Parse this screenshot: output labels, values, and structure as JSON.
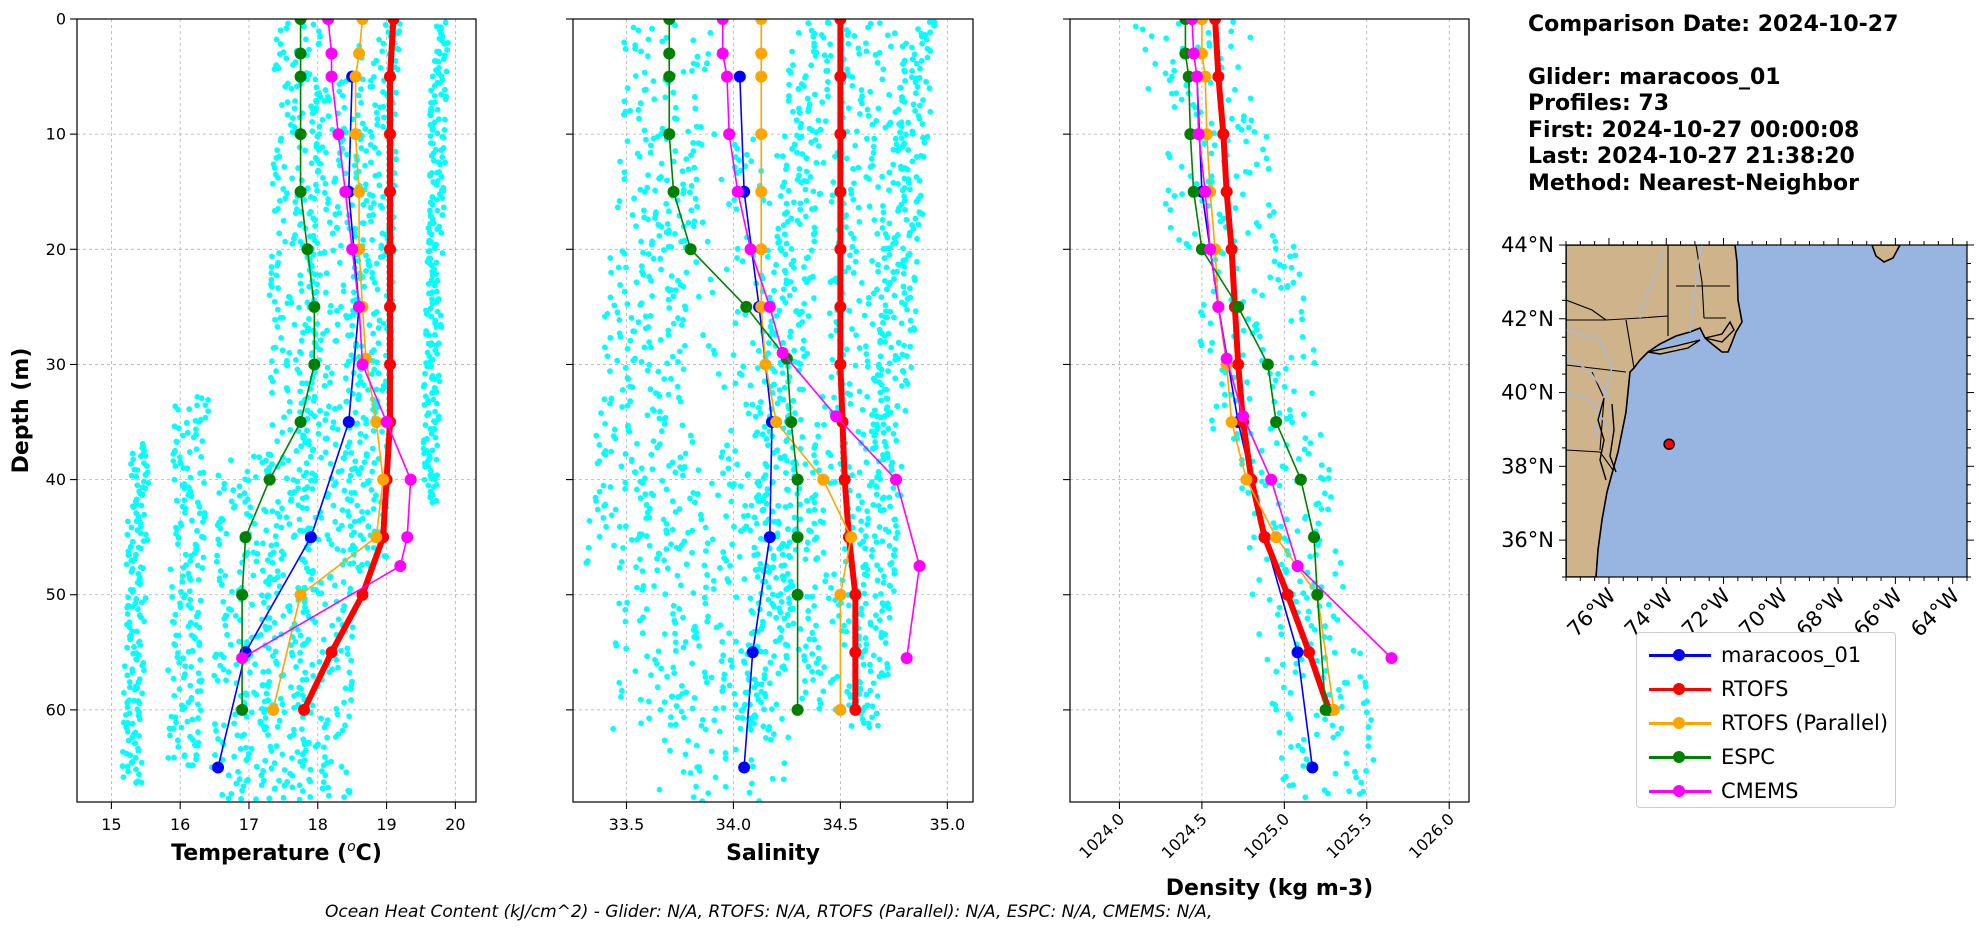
{
  "colors": {
    "glider": "#0000ff",
    "rtofs": "#ff0000",
    "rtofs_parallel": "#ffa500",
    "espc": "#008000",
    "cmems": "#ff00ff",
    "glider_raw": "#00ffff",
    "land": "#cfb38a",
    "ocean": "#98b5e2",
    "rivers": "#a8bcd8",
    "grid": "#b0b0b0"
  },
  "info": {
    "comparison_date": "Comparison Date: 2024-10-27",
    "glider": "Glider: maracoos_01",
    "profiles": "Profiles: 73",
    "first": "First: 2024-10-27 00:00:08",
    "last": "Last: 2024-10-27 21:38:20",
    "method": "Method: Nearest-Neighbor"
  },
  "footer": "Ocean Heat Content (kJ/cm^2) - Glider: N/A,  RTOFS: N/A,  RTOFS (Parallel): N/A,  ESPC: N/A,  CMEMS: N/A,",
  "legend": [
    {
      "label": "maracoos_01",
      "color_key": "glider"
    },
    {
      "label": "RTOFS",
      "color_key": "rtofs"
    },
    {
      "label": "RTOFS (Parallel)",
      "color_key": "rtofs_parallel"
    },
    {
      "label": "ESPC",
      "color_key": "espc"
    },
    {
      "label": "CMEMS",
      "color_key": "cmems"
    }
  ],
  "chart_data": [
    {
      "type": "line",
      "panel": "temperature",
      "ylabel": "Depth (m)",
      "ylim": [
        68,
        0
      ],
      "yticks": [
        0,
        10,
        20,
        30,
        40,
        50,
        60
      ],
      "xlabel_parts": [
        "Temperature (",
        "o",
        "C)"
      ],
      "xlim": [
        14.5,
        20.3
      ],
      "xticks": [
        15,
        16,
        17,
        18,
        19,
        20
      ],
      "grid": true,
      "raw_columns": [
        {
          "base": 15.35,
          "top": 37,
          "bottom": 66.5,
          "spread": 0.15
        },
        {
          "base": 16.1,
          "top": 33,
          "bottom": 65,
          "spread": 0.25
        },
        {
          "base": 16.9,
          "top": 38,
          "bottom": 68,
          "spread": 0.4
        },
        {
          "base": 17.6,
          "top": 0.5,
          "bottom": 68,
          "spread": 0.35
        },
        {
          "base": 18.2,
          "top": 5,
          "bottom": 68,
          "spread": 0.4
        },
        {
          "base": 18.8,
          "top": 0.5,
          "bottom": 48,
          "spread": 0.3
        },
        {
          "base": 19.7,
          "top": 0.5,
          "bottom": 42,
          "spread": 0.12
        }
      ],
      "series": [
        {
          "name": "maracoos_01",
          "color_key": "glider",
          "width": 1.6,
          "marker": 6,
          "depth": [
            5,
            15,
            25,
            35,
            45,
            55,
            65
          ],
          "values": [
            18.5,
            18.45,
            18.6,
            18.45,
            17.9,
            16.95,
            16.55
          ]
        },
        {
          "name": "RTOFS",
          "color_key": "rtofs",
          "width": 6,
          "marker": 6,
          "depth": [
            0,
            5,
            10,
            15,
            20,
            25,
            30,
            35,
            40,
            45,
            50,
            55,
            60
          ],
          "values": [
            19.1,
            19.05,
            19.05,
            19.05,
            19.05,
            19.05,
            19.05,
            19.05,
            19.0,
            18.95,
            18.65,
            18.2,
            17.8
          ]
        },
        {
          "name": "RTOFS (Parallel)",
          "color_key": "rtofs_parallel",
          "width": 1.6,
          "marker": 6,
          "depth": [
            0,
            3,
            5,
            10,
            15,
            20,
            25,
            29.5,
            35,
            40,
            45,
            50,
            60
          ],
          "values": [
            18.65,
            18.6,
            18.55,
            18.55,
            18.6,
            18.6,
            18.65,
            18.7,
            18.85,
            18.95,
            18.85,
            17.75,
            17.35
          ]
        },
        {
          "name": "ESPC",
          "color_key": "espc",
          "width": 1.6,
          "marker": 6,
          "depth": [
            0,
            3,
            5,
            10,
            15,
            20,
            25,
            30,
            35,
            40,
            45,
            50,
            60
          ],
          "values": [
            17.75,
            17.75,
            17.75,
            17.75,
            17.75,
            17.85,
            17.95,
            17.95,
            17.75,
            17.3,
            16.95,
            16.9,
            16.9
          ]
        },
        {
          "name": "CMEMS",
          "color_key": "cmems",
          "width": 1.6,
          "marker": 6,
          "depth": [
            0,
            3,
            5,
            10,
            15,
            20,
            25,
            30,
            35,
            40,
            45,
            47.5,
            55.5
          ],
          "values": [
            18.15,
            18.2,
            18.2,
            18.3,
            18.4,
            18.5,
            18.6,
            18.65,
            19.0,
            19.35,
            19.3,
            19.2,
            16.9
          ]
        }
      ]
    },
    {
      "type": "line",
      "panel": "salinity",
      "ylim": [
        68,
        0
      ],
      "yticks": [
        0,
        10,
        20,
        30,
        40,
        50,
        60
      ],
      "xlabel_parts": [
        "Salinity"
      ],
      "xlim": [
        33.25,
        35.12
      ],
      "xticks": [
        33.5,
        34.0,
        34.5,
        35.0
      ],
      "grid": true,
      "raw_columns": [
        {
          "base": 33.6,
          "top": 0.5,
          "bottom": 48,
          "spread": 0.2
        },
        {
          "base": 33.85,
          "top": 10,
          "bottom": 62,
          "spread": 0.35
        },
        {
          "base": 34.0,
          "top": 38,
          "bottom": 68,
          "spread": 0.3
        },
        {
          "base": 34.25,
          "top": 0.5,
          "bottom": 62,
          "spread": 0.1
        },
        {
          "base": 34.55,
          "top": 0.5,
          "bottom": 60,
          "spread": 0.15
        },
        {
          "base": 34.75,
          "top": 0.5,
          "bottom": 62,
          "spread": 0.08
        }
      ],
      "series": [
        {
          "name": "maracoos_01",
          "color_key": "glider",
          "width": 1.6,
          "marker": 6,
          "depth": [
            5,
            15,
            25,
            35,
            45,
            55,
            65
          ],
          "values": [
            34.03,
            34.05,
            34.12,
            34.18,
            34.17,
            34.09,
            34.05
          ]
        },
        {
          "name": "RTOFS",
          "color_key": "rtofs",
          "width": 6,
          "marker": 6,
          "depth": [
            0,
            5,
            10,
            15,
            20,
            25,
            30,
            35,
            40,
            45,
            50,
            55,
            60
          ],
          "values": [
            34.5,
            34.5,
            34.5,
            34.5,
            34.5,
            34.5,
            34.5,
            34.51,
            34.52,
            34.54,
            34.57,
            34.57,
            34.57
          ]
        },
        {
          "name": "RTOFS (Parallel)",
          "color_key": "rtofs_parallel",
          "width": 1.6,
          "marker": 6,
          "depth": [
            0,
            3,
            5,
            10,
            15,
            20,
            25,
            30,
            35,
            40,
            45,
            50,
            60
          ],
          "values": [
            34.13,
            34.13,
            34.13,
            34.13,
            34.13,
            34.13,
            34.13,
            34.15,
            34.2,
            34.42,
            34.55,
            34.5,
            34.5
          ]
        },
        {
          "name": "ESPC",
          "color_key": "espc",
          "width": 1.6,
          "marker": 6,
          "depth": [
            0,
            3,
            5,
            10,
            15,
            20,
            25,
            29.5,
            35,
            40,
            45,
            50,
            60
          ],
          "values": [
            33.7,
            33.7,
            33.7,
            33.7,
            33.72,
            33.8,
            34.06,
            34.25,
            34.27,
            34.3,
            34.3,
            34.3,
            34.3
          ]
        },
        {
          "name": "CMEMS",
          "color_key": "cmems",
          "width": 1.6,
          "marker": 6,
          "depth": [
            0,
            3,
            5,
            10,
            15,
            20,
            25,
            29,
            34.5,
            40,
            47.5,
            55.5
          ],
          "values": [
            33.95,
            33.95,
            33.97,
            33.98,
            34.02,
            34.08,
            34.17,
            34.23,
            34.48,
            34.76,
            34.87,
            34.81
          ]
        }
      ]
    },
    {
      "type": "line",
      "panel": "density",
      "ylim": [
        68,
        0
      ],
      "yticks": [
        0,
        10,
        20,
        30,
        40,
        50,
        60
      ],
      "xlabel_parts": [
        "Density (kg m-3)"
      ],
      "xlim": [
        1023.7,
        1026.12
      ],
      "xticks": [
        1024.0,
        1024.5,
        1025.0,
        1025.5,
        1026.0
      ],
      "grid": true,
      "raw_columns": [
        {
          "base": 1024.55,
          "top": 0.5,
          "bottom": 20,
          "spread": 0.35
        },
        {
          "base": 1024.85,
          "top": 20,
          "bottom": 40,
          "spread": 0.35
        },
        {
          "base": 1025.15,
          "top": 40,
          "bottom": 68,
          "spread": 0.3
        }
      ],
      "series": [
        {
          "name": "maracoos_01",
          "color_key": "glider",
          "width": 1.6,
          "marker": 6,
          "depth": [
            5,
            15,
            25,
            35,
            45,
            55,
            65
          ],
          "values": [
            1024.47,
            1024.5,
            1024.6,
            1024.72,
            1024.88,
            1025.08,
            1025.17
          ]
        },
        {
          "name": "RTOFS",
          "color_key": "rtofs",
          "width": 6,
          "marker": 6,
          "depth": [
            0,
            5,
            10,
            15,
            20,
            25,
            30,
            35,
            40,
            45,
            50,
            55,
            60
          ],
          "values": [
            1024.58,
            1024.6,
            1024.63,
            1024.65,
            1024.68,
            1024.7,
            1024.72,
            1024.75,
            1024.8,
            1024.88,
            1025.02,
            1025.15,
            1025.27
          ]
        },
        {
          "name": "RTOFS (Parallel)",
          "color_key": "rtofs_parallel",
          "width": 1.6,
          "marker": 6,
          "depth": [
            0,
            3,
            5,
            10,
            15,
            20,
            25,
            30,
            35,
            40,
            45,
            50,
            60
          ],
          "values": [
            1024.5,
            1024.5,
            1024.52,
            1024.53,
            1024.55,
            1024.58,
            1024.6,
            1024.65,
            1024.68,
            1024.77,
            1024.95,
            1025.2,
            1025.3
          ]
        },
        {
          "name": "ESPC",
          "color_key": "espc",
          "width": 1.6,
          "marker": 6,
          "depth": [
            0,
            3,
            5,
            10,
            15,
            20,
            25,
            30,
            35,
            40,
            45,
            50,
            60
          ],
          "values": [
            1024.4,
            1024.4,
            1024.42,
            1024.43,
            1024.45,
            1024.5,
            1024.72,
            1024.9,
            1024.95,
            1025.1,
            1025.18,
            1025.2,
            1025.25
          ]
        },
        {
          "name": "CMEMS",
          "color_key": "cmems",
          "width": 1.6,
          "marker": 6,
          "depth": [
            0,
            3,
            5,
            10,
            15,
            20,
            25,
            29.5,
            34.5,
            40,
            47.5,
            55.5
          ],
          "values": [
            1024.44,
            1024.45,
            1024.47,
            1024.48,
            1024.52,
            1024.55,
            1024.6,
            1024.65,
            1024.75,
            1024.92,
            1025.08,
            1025.65
          ]
        }
      ]
    },
    {
      "type": "map",
      "lon_range": [
        -77.5,
        -63.5
      ],
      "lat_range": [
        35,
        44
      ],
      "lat_ticks": [
        "36°N",
        "38°N",
        "40°N",
        "42°N",
        "44°N"
      ],
      "lat_values": [
        36,
        38,
        40,
        42,
        44
      ],
      "lon_ticks": [
        "76°W",
        "74°W",
        "72°W",
        "70°W",
        "68°W",
        "66°W",
        "64°W"
      ],
      "lon_values": [
        -76,
        -74,
        -72,
        -70,
        -68,
        -66,
        -64
      ],
      "glider_position": {
        "lon": -73.9,
        "lat": 38.6
      }
    }
  ]
}
